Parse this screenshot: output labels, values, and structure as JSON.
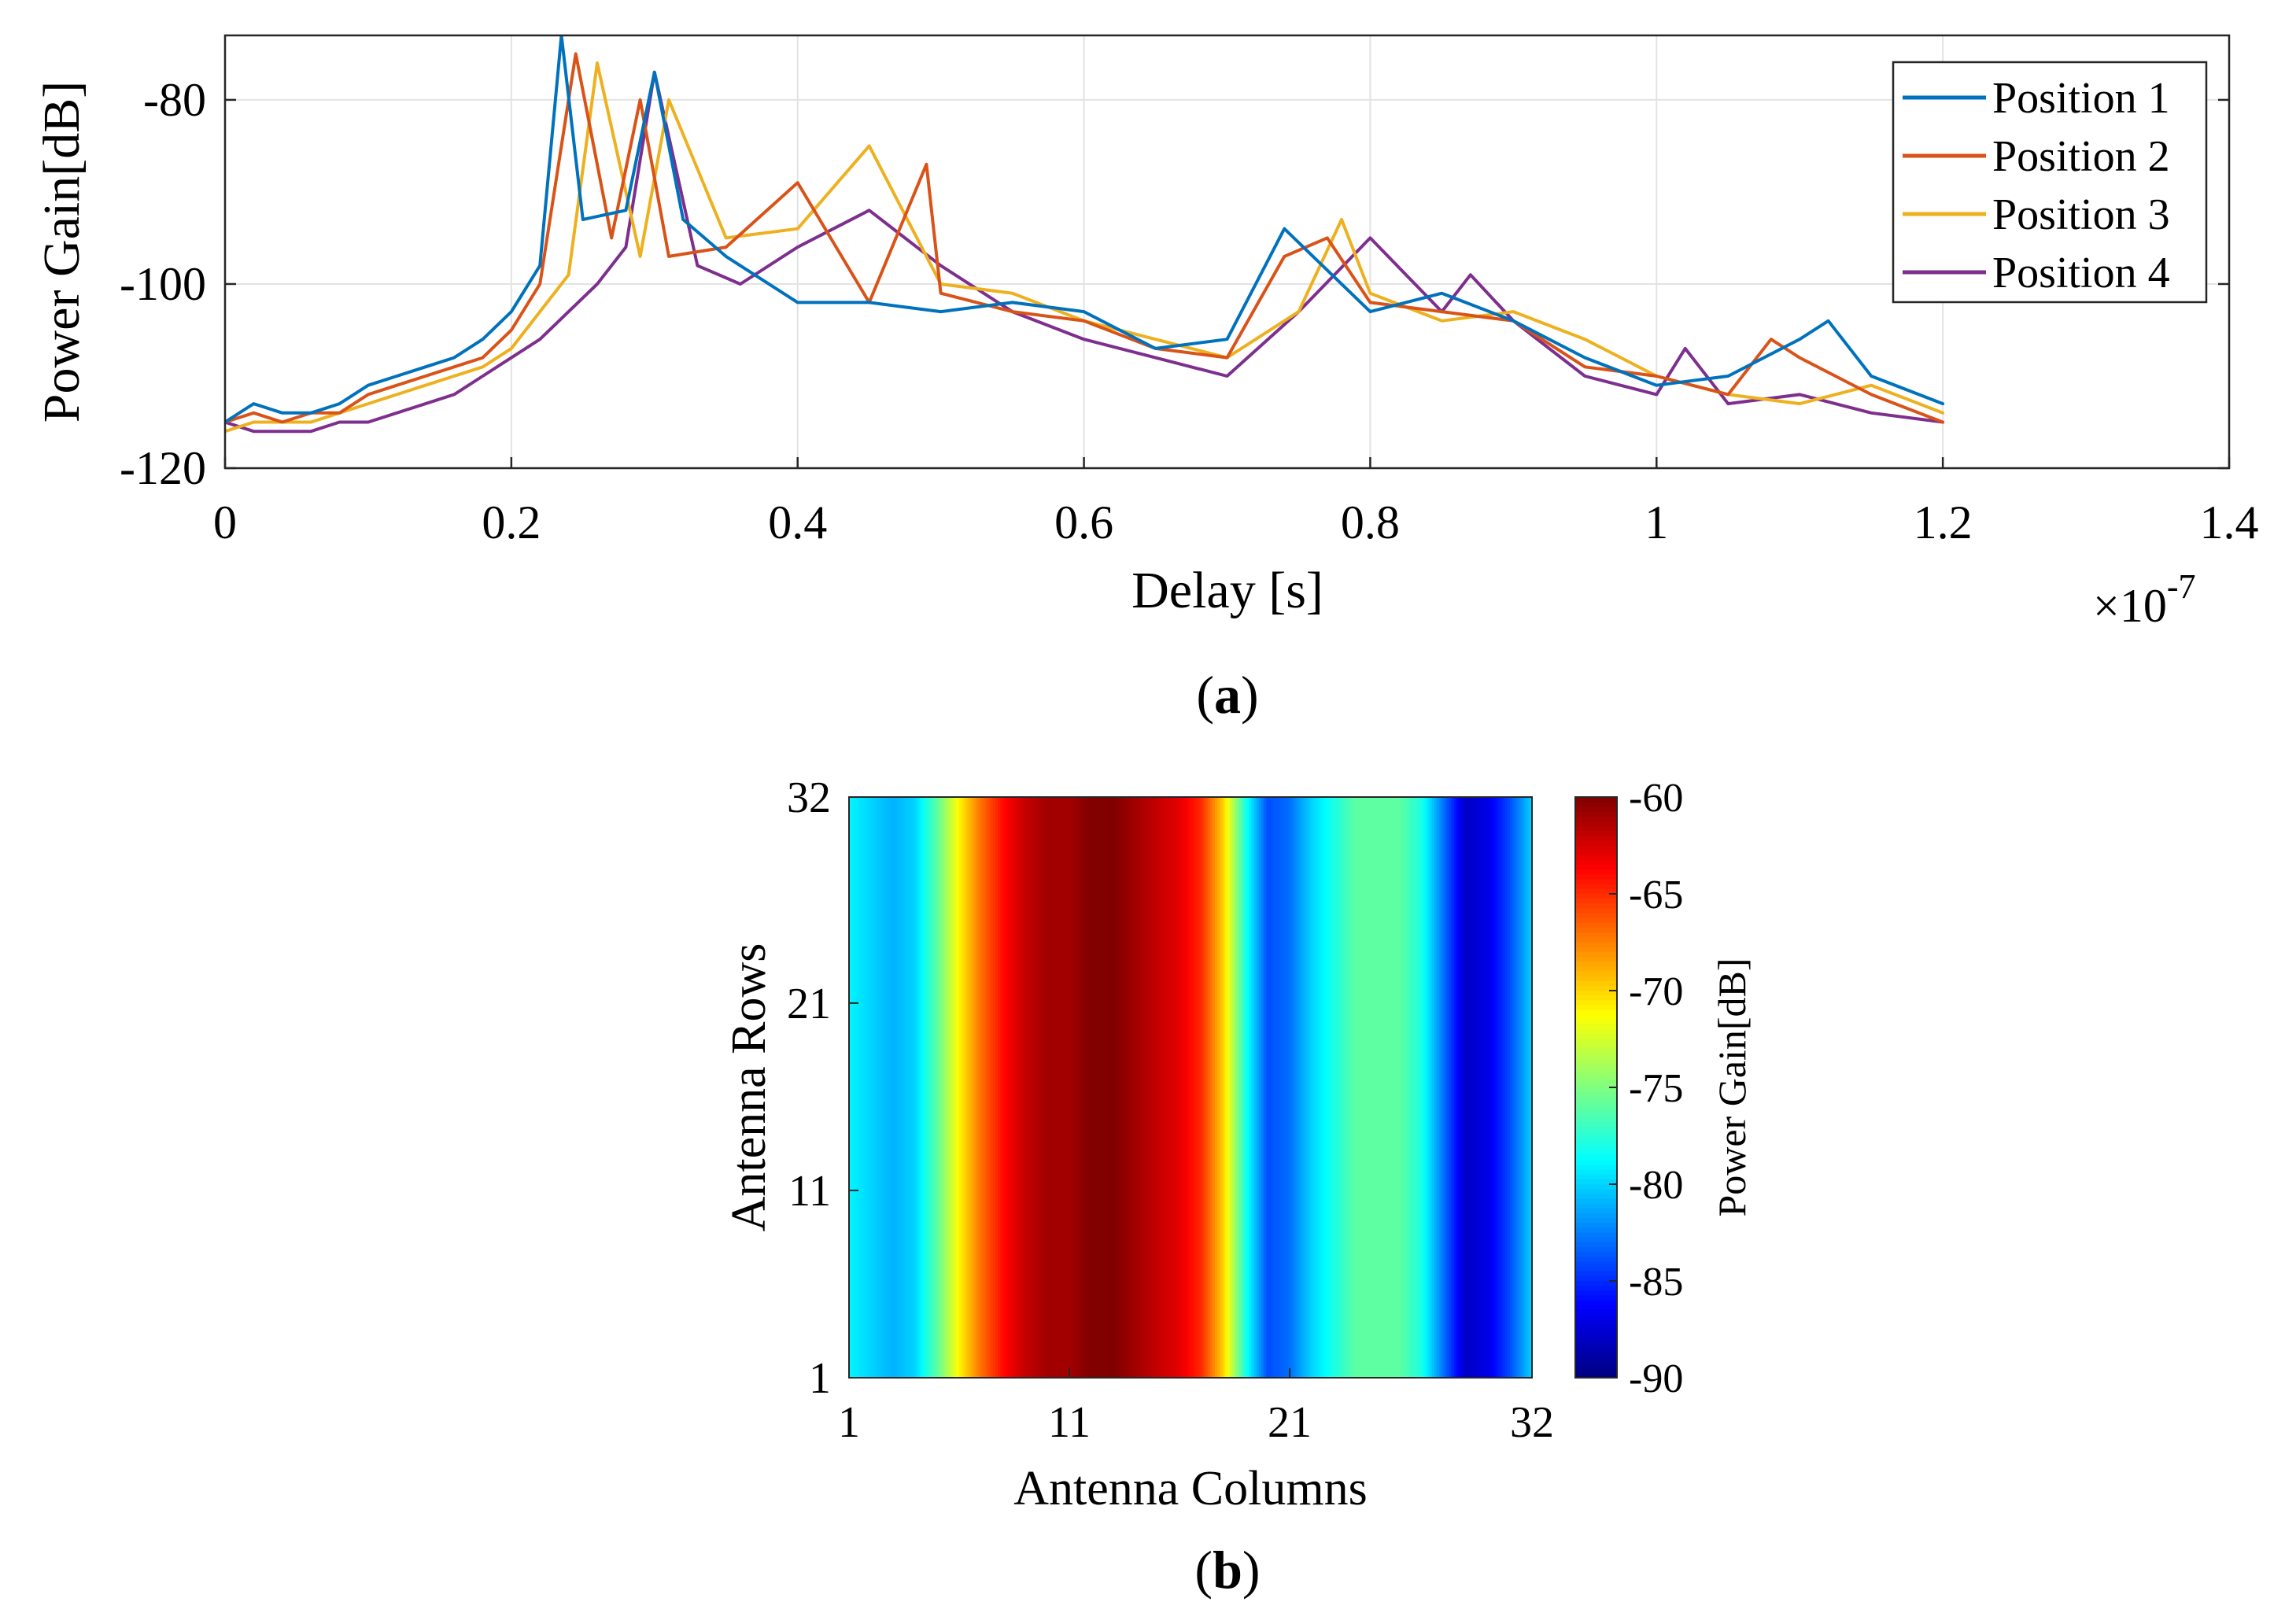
{
  "colors": {
    "position1": "#0072BD",
    "position2": "#D95319",
    "position3": "#EDB120",
    "position4": "#7E2F8E"
  },
  "chart_data": [
    {
      "type": "line",
      "panel_label": "a",
      "xlabel": "Delay [s]",
      "ylabel": "Power Gain[dB]",
      "x_multiplier": "×10-7",
      "x_multiplier_base": "×10",
      "x_multiplier_exp": "-7",
      "xlim": [
        0,
        1.4e-07
      ],
      "ylim": [
        -120,
        -73
      ],
      "xticks": [
        0,
        0.2,
        0.4,
        0.6,
        0.8,
        1,
        1.2,
        1.4
      ],
      "xtick_labels": [
        "0",
        "0.2",
        "0.4",
        "0.6",
        "0.8",
        "1",
        "1.2",
        "1.4"
      ],
      "yticks": [
        -120,
        -100,
        -80
      ],
      "ytick_labels": [
        "-120",
        "-100",
        "-80"
      ],
      "grid": true,
      "legend_position": "top-right",
      "x_unit_scale": 1e-07,
      "series": [
        {
          "name": "Position 1",
          "color_key": "position1",
          "x": [
            0,
            0.02,
            0.04,
            0.06,
            0.08,
            0.1,
            0.12,
            0.14,
            0.16,
            0.18,
            0.2,
            0.22,
            0.235,
            0.25,
            0.28,
            0.3,
            0.32,
            0.35,
            0.4,
            0.45,
            0.5,
            0.55,
            0.6,
            0.65,
            0.7,
            0.74,
            0.76,
            0.8,
            0.85,
            0.9,
            0.95,
            1.0,
            1.05,
            1.1,
            1.12,
            1.15,
            1.2
          ],
          "y": [
            -115,
            -113,
            -114,
            -114,
            -113,
            -111,
            -110,
            -109,
            -108,
            -106,
            -103,
            -98,
            -73,
            -93,
            -92,
            -77,
            -93,
            -97,
            -102,
            -102,
            -103,
            -102,
            -103,
            -107,
            -106,
            -94,
            -97,
            -103,
            -101,
            -104,
            -108,
            -111,
            -110,
            -106,
            -104,
            -110,
            -113
          ]
        },
        {
          "name": "Position 2",
          "color_key": "position2",
          "x": [
            0,
            0.02,
            0.04,
            0.06,
            0.08,
            0.1,
            0.12,
            0.14,
            0.16,
            0.18,
            0.2,
            0.22,
            0.245,
            0.27,
            0.29,
            0.31,
            0.35,
            0.4,
            0.45,
            0.49,
            0.5,
            0.55,
            0.6,
            0.65,
            0.7,
            0.74,
            0.77,
            0.8,
            0.85,
            0.9,
            0.95,
            1.0,
            1.05,
            1.08,
            1.1,
            1.15,
            1.2
          ],
          "y": [
            -115,
            -114,
            -115,
            -114,
            -114,
            -112,
            -111,
            -110,
            -109,
            -108,
            -105,
            -100,
            -75,
            -95,
            -80,
            -97,
            -96,
            -89,
            -102,
            -87,
            -101,
            -103,
            -104,
            -107,
            -108,
            -97,
            -95,
            -102,
            -103,
            -104,
            -109,
            -110,
            -112,
            -106,
            -108,
            -112,
            -115
          ]
        },
        {
          "name": "Position 3",
          "color_key": "position3",
          "x": [
            0,
            0.02,
            0.04,
            0.06,
            0.08,
            0.1,
            0.12,
            0.14,
            0.16,
            0.18,
            0.2,
            0.22,
            0.24,
            0.26,
            0.29,
            0.31,
            0.35,
            0.4,
            0.45,
            0.5,
            0.55,
            0.6,
            0.65,
            0.7,
            0.75,
            0.78,
            0.8,
            0.85,
            0.9,
            0.95,
            1.0,
            1.05,
            1.1,
            1.15,
            1.2
          ],
          "y": [
            -116,
            -115,
            -115,
            -115,
            -114,
            -113,
            -112,
            -111,
            -110,
            -109,
            -107,
            -103,
            -99,
            -76,
            -97,
            -80,
            -95,
            -94,
            -85,
            -100,
            -101,
            -104,
            -106,
            -108,
            -103,
            -93,
            -101,
            -104,
            -103,
            -106,
            -110,
            -112,
            -113,
            -111,
            -114
          ]
        },
        {
          "name": "Position 4",
          "color_key": "position4",
          "x": [
            0,
            0.02,
            0.04,
            0.06,
            0.08,
            0.1,
            0.12,
            0.14,
            0.16,
            0.18,
            0.2,
            0.22,
            0.24,
            0.26,
            0.28,
            0.3,
            0.33,
            0.36,
            0.4,
            0.45,
            0.5,
            0.55,
            0.6,
            0.65,
            0.7,
            0.75,
            0.8,
            0.85,
            0.87,
            0.9,
            0.95,
            1.0,
            1.02,
            1.05,
            1.1,
            1.15,
            1.2
          ],
          "y": [
            -115,
            -116,
            -116,
            -116,
            -115,
            -115,
            -114,
            -113,
            -112,
            -110,
            -108,
            -106,
            -103,
            -100,
            -96,
            -77,
            -98,
            -100,
            -96,
            -92,
            -98,
            -103,
            -106,
            -108,
            -110,
            -103,
            -95,
            -103,
            -99,
            -104,
            -110,
            -112,
            -107,
            -113,
            -112,
            -114,
            -115
          ]
        }
      ]
    },
    {
      "type": "heatmap",
      "panel_label": "b",
      "xlabel": "Antenna Columns",
      "ylabel": "Antenna Rows",
      "xticks": [
        1,
        11,
        21,
        32
      ],
      "yticks": [
        1,
        11,
        21,
        32
      ],
      "xlim": [
        1,
        32
      ],
      "ylim": [
        1,
        32
      ],
      "colorbar_label": "Power Gain[dB]",
      "colorbar_range": [
        -90,
        -60
      ],
      "colorbar_ticks": [
        -90,
        -85,
        -80,
        -75,
        -70,
        -65,
        -60
      ],
      "colormap": "jet",
      "columns": [
        1,
        2,
        3,
        4,
        5,
        6,
        7,
        8,
        9,
        10,
        11,
        12,
        13,
        14,
        15,
        16,
        17,
        18,
        19,
        20,
        21,
        22,
        23,
        24,
        25,
        26,
        27,
        28,
        29,
        30,
        31,
        32
      ],
      "column_profile_db": [
        -79,
        -80,
        -81,
        -80,
        -76,
        -71,
        -67,
        -64,
        -62,
        -61,
        -61,
        -60,
        -60,
        -61,
        -62,
        -63,
        -65,
        -70,
        -78,
        -84,
        -83,
        -80,
        -78,
        -76,
        -76,
        -76,
        -78,
        -83,
        -88,
        -87,
        -84,
        -80
      ]
    }
  ]
}
